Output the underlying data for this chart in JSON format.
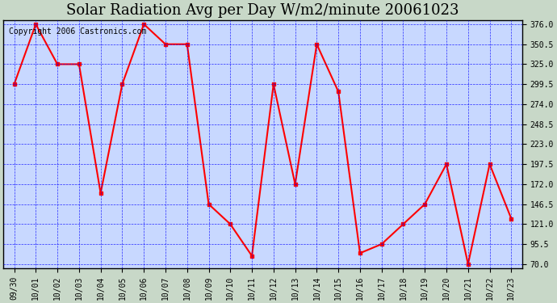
{
  "title": "Solar Radiation Avg per Day W/m2/minute 20061023",
  "copyright": "Copyright 2006 Castronics.com",
  "x_labels": [
    "09/30",
    "10/01",
    "10/02",
    "10/03",
    "10/04",
    "10/05",
    "10/06",
    "10/07",
    "10/08",
    "10/09",
    "10/10",
    "10/11",
    "10/12",
    "10/13",
    "10/14",
    "10/15",
    "10/16",
    "10/17",
    "10/18",
    "10/19",
    "10/20",
    "10/21",
    "10/22",
    "10/23"
  ],
  "y_values": [
    299.5,
    376.0,
    325.0,
    325.0,
    160.5,
    299.5,
    376.0,
    350.5,
    350.5,
    146.5,
    121.0,
    80.5,
    299.5,
    172.0,
    350.5,
    290.0,
    84.0,
    95.5,
    121.0,
    146.5,
    197.5,
    70.0,
    197.5,
    128.0
  ],
  "line_color": "red",
  "marker": "s",
  "marker_size": 3,
  "marker_color": "red",
  "bg_color": "#c8d8c8",
  "plot_bg_color": "#c8d8ff",
  "grid_color": "blue",
  "y_min": 70.0,
  "y_max": 376.0,
  "y_ticks": [
    70.0,
    95.5,
    121.0,
    146.5,
    172.0,
    197.5,
    223.0,
    248.5,
    274.0,
    299.5,
    325.0,
    350.5,
    376.0
  ],
  "title_fontsize": 13,
  "copyright_fontsize": 7
}
